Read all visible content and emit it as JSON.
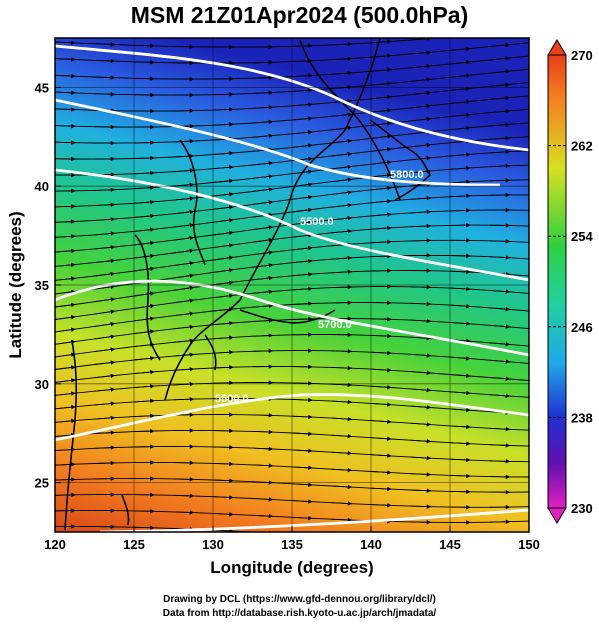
{
  "title": "MSM 21Z01Apr2024 (500.0hPa)",
  "xlabel": "Longitude (degrees)",
  "ylabel": "Latitude  (degrees)",
  "x_ticks": [
    "120",
    "125",
    "130",
    "135",
    "140",
    "145",
    "150"
  ],
  "y_ticks": [
    "25",
    "30",
    "35",
    "40",
    "45"
  ],
  "colorbar": {
    "ticks": [
      "270",
      "262",
      "254",
      "246",
      "238",
      "230"
    ],
    "min": 230,
    "max": 270,
    "unit_scale": "temperature (K)"
  },
  "contour_labels": [
    "5500.0",
    "5700.0",
    "5600.0",
    "5800.0"
  ],
  "credits": {
    "line1": "Drawing by DCL (https://www.gfd-dennou.org/library/dcl/)",
    "line2": "Data from http://database.rish.kyoto-u.ac.jp/arch/jmadata/"
  },
  "colors": {
    "cold": "#1a2fd0",
    "mid": "#27c83a",
    "warm": "#e6431c",
    "contour": "#ffffff",
    "frame": "#000000"
  },
  "chart_data": {
    "type": "heatmap",
    "x_range": [
      120,
      150
    ],
    "y_range": [
      22.5,
      47.5
    ],
    "value_range": [
      230,
      270
    ],
    "contours": [
      {
        "label": "5500.0"
      },
      {
        "label": "5600.0"
      },
      {
        "label": "5700.0"
      },
      {
        "label": "5800.0"
      }
    ],
    "wind": "westerly streamlines"
  }
}
